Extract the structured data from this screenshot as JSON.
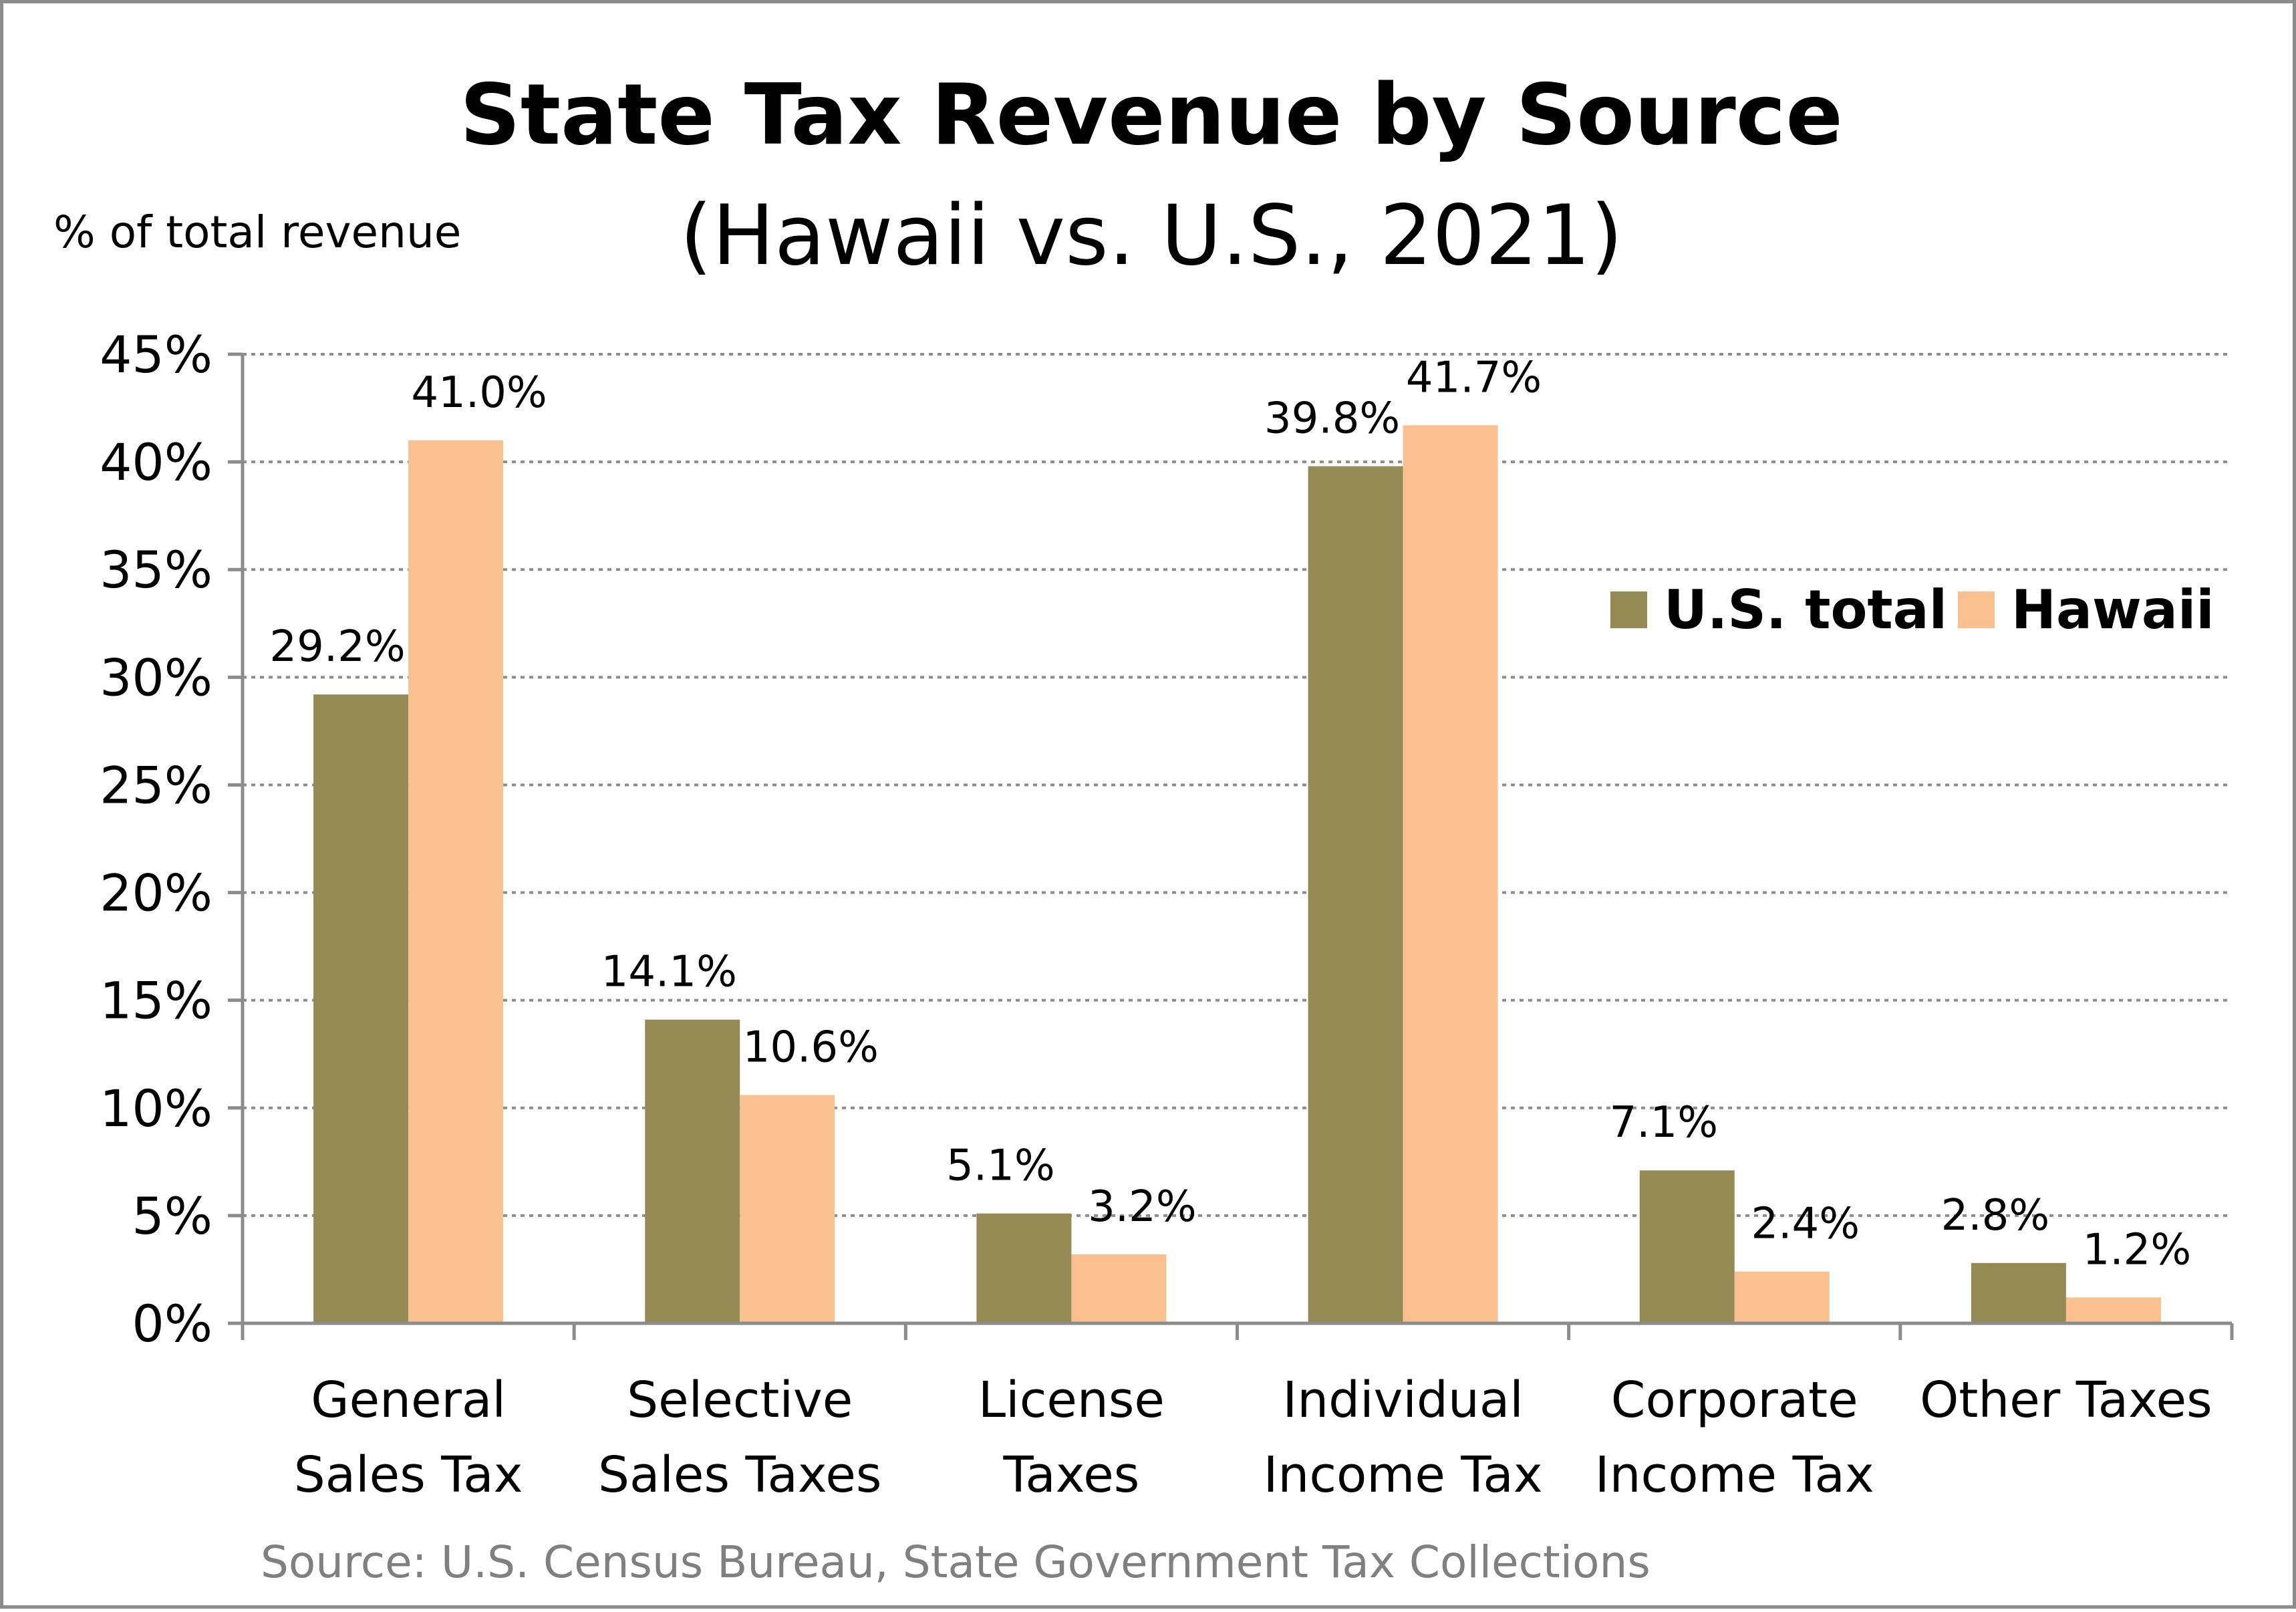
{
  "chart_data": {
    "type": "bar",
    "title": "State Tax Revenue by Source",
    "subtitle": "(Hawaii vs. U.S., 2021)",
    "ylabel": "% of total revenue",
    "xlabel": "",
    "source": "Source: U.S. Census Bureau, State Government Tax Collections",
    "ylim": [
      0,
      45
    ],
    "y_ticks": [
      "0%",
      "5%",
      "10%",
      "15%",
      "20%",
      "25%",
      "30%",
      "35%",
      "40%",
      "45%"
    ],
    "grid": "horizontal dotted",
    "legend_position": "right",
    "categories": [
      [
        "General",
        "Sales Tax"
      ],
      [
        "Selective",
        "Sales Taxes"
      ],
      [
        "License",
        "Taxes"
      ],
      [
        "Individual",
        "Income Tax"
      ],
      [
        "Corporate",
        "Income Tax"
      ],
      [
        "Other Taxes"
      ]
    ],
    "series": [
      {
        "name": "U.S. total",
        "color": "#948a54",
        "values": [
          29.2,
          14.1,
          5.1,
          39.8,
          7.1,
          2.8
        ],
        "labels": [
          "29.2%",
          "14.1%",
          "5.1%",
          "39.8%",
          "7.1%",
          "2.8%"
        ]
      },
      {
        "name": "Hawaii",
        "color": "#fac090",
        "values": [
          41.0,
          10.6,
          3.2,
          41.7,
          2.4,
          1.2
        ],
        "labels": [
          "41.0%",
          "10.6%",
          "3.2%",
          "41.7%",
          "2.4%",
          "1.2%"
        ]
      }
    ]
  }
}
